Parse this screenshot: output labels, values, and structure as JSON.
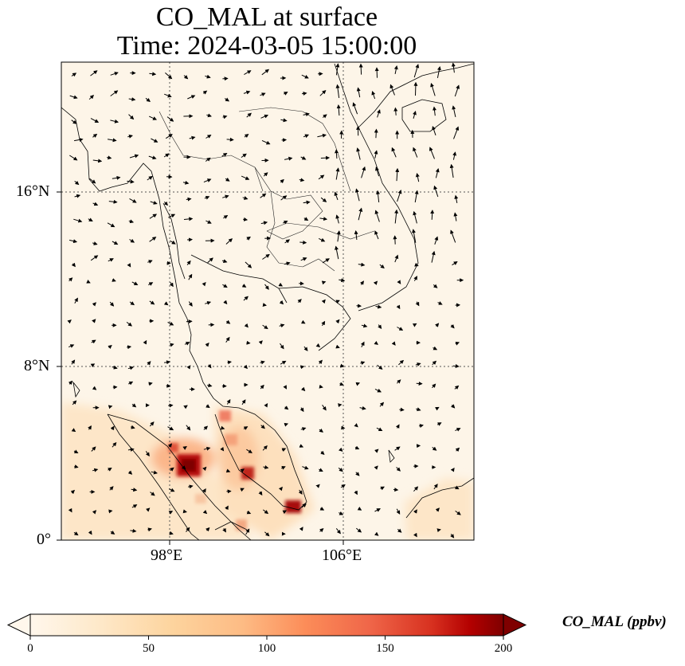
{
  "title": {
    "line1": "CO_MAL at surface",
    "line2": "Time: 2024-03-05 15:00:00"
  },
  "map": {
    "lat_labels": [
      "16°N",
      "8°N",
      "0°"
    ],
    "lon_labels": [
      "98°E",
      "106°E"
    ],
    "gridline_style": "dotted",
    "lon_range": [
      93,
      112
    ],
    "lat_range": [
      0,
      22
    ],
    "wind_vectors": "black arrows"
  },
  "colorbar": {
    "label": "CO_MAL (ppbv)",
    "ticks": [
      "0",
      "50",
      "100",
      "150",
      "200"
    ],
    "range": [
      0,
      200
    ],
    "colormap": "OrRd",
    "extend": "both"
  },
  "colors": {
    "background": "#fdf5e8",
    "max": "#7f0000"
  }
}
